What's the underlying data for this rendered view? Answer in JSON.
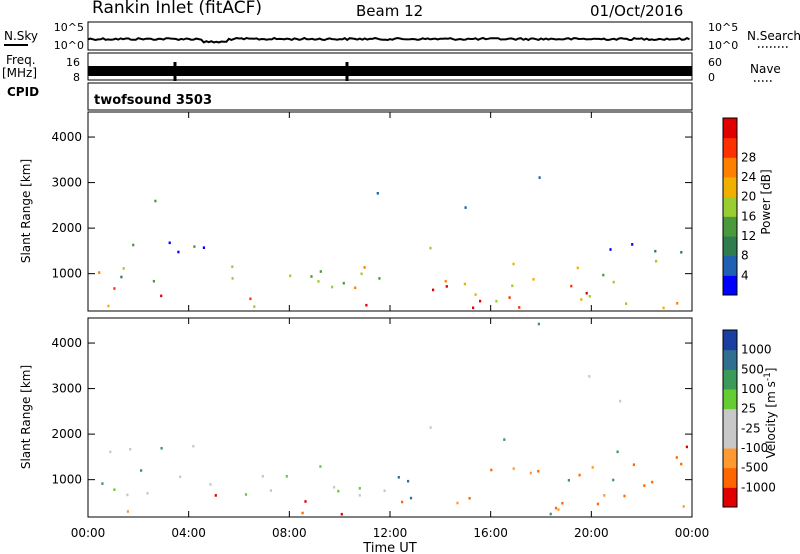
{
  "header": {
    "title": "Rankin Inlet (fitACF)",
    "beam": "Beam 12",
    "date": "01/Oct/2016"
  },
  "noise_panel": {
    "left_label": "N.Sky",
    "left_ticks": [
      "10^5",
      "10^0"
    ],
    "right_ticks": [
      "10^5",
      "10^0"
    ],
    "right_label": "N.Search"
  },
  "freq_panel": {
    "left_label": "Freq.",
    "left_unit": "[MHz]",
    "left_ticks": [
      "16",
      "8"
    ],
    "right_ticks": [
      "60",
      "0"
    ],
    "right_label": "Nave"
  },
  "cpid_panel": {
    "label": "CPID",
    "value": "twofsound 3503"
  },
  "time_axis": {
    "label": "Time UT",
    "ticks": [
      "00:00",
      "04:00",
      "08:00",
      "12:00",
      "16:00",
      "20:00",
      "00:00"
    ],
    "hours": [
      0,
      4,
      8,
      12,
      16,
      20,
      24
    ],
    "range": [
      0,
      24
    ]
  },
  "colors": {
    "frame": "#000000",
    "power_scale": [
      "#0000ff",
      "#1f5fb4",
      "#2f7d4f",
      "#4a9a3c",
      "#9acd32",
      "#f0b000",
      "#ff7f00",
      "#ff3000",
      "#e00000"
    ],
    "velocity_scale": [
      "#e00000",
      "#ff6600",
      "#ff9a33",
      "#c8c8c8",
      "#c8c8c8",
      "#66cc33",
      "#3a9a5a",
      "#2f7090",
      "#1a3fa0"
    ]
  },
  "chart_data": [
    {
      "type": "heatmap",
      "panel": "power",
      "ylabel": "Slant Range [km]",
      "yticks": [
        1000,
        2000,
        3000,
        4000
      ],
      "ylim": [
        180,
        4550
      ],
      "xlim": [
        0,
        24
      ],
      "colorbar": {
        "label": "Power [dB]",
        "ticks": [
          "4",
          "8",
          "12",
          "16",
          "20",
          "24",
          "28"
        ],
        "range": [
          0,
          32
        ]
      }
    },
    {
      "type": "heatmap",
      "panel": "velocity",
      "ylabel": "Slant Range [km]",
      "yticks": [
        1000,
        2000,
        3000,
        4000
      ],
      "ylim": [
        180,
        4550
      ],
      "xlim": [
        0,
        24
      ],
      "colorbar": {
        "label": "Velocity [m s^-1]",
        "ticks": [
          "1000",
          "500",
          "100",
          "25",
          "-25",
          "-100",
          "-500",
          "-1000"
        ]
      }
    }
  ]
}
